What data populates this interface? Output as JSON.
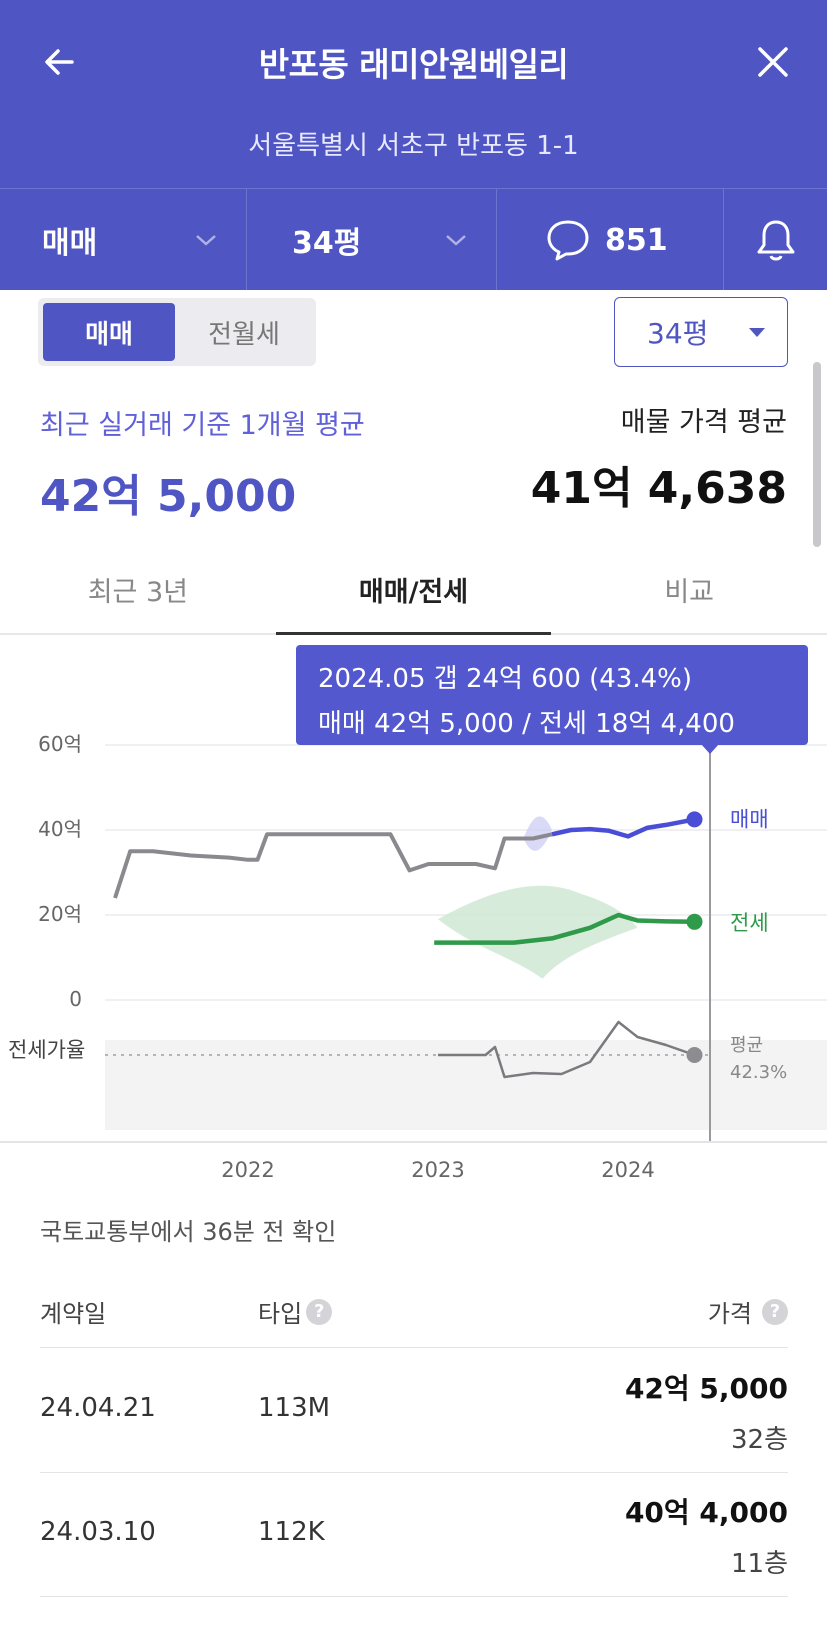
{
  "header": {
    "title": "반포동 래미안원베일리",
    "address": "서울특별시 서초구 반포동 1-1",
    "trade_type": "매매",
    "size": "34평",
    "comment_count": "851",
    "background": "#4f55c3"
  },
  "toggle": {
    "active": "매매",
    "inactive": "전월세"
  },
  "size_select": {
    "value": "34평"
  },
  "summary": {
    "recent_label": "최근 실거래 기준 1개월 평균",
    "recent_price": "42억 5,000",
    "listing_label": "매물 가격 평균",
    "listing_price": "41억 4,638"
  },
  "tabs": [
    {
      "label": "최근 3년"
    },
    {
      "label": "매매/전세"
    },
    {
      "label": "비교"
    }
  ],
  "tooltip": {
    "line1": "2024.05  갭 24억 600 (43.4%)",
    "line2": "매매 42억 5,000 / 전세 18억 4,400"
  },
  "chart_data": {
    "type": "line",
    "y_unit": "억",
    "ylim": [
      0,
      60
    ],
    "y_ticks": [
      "60억",
      "40억",
      "20억",
      "0"
    ],
    "x_ticks": [
      "2022",
      "2023",
      "2024"
    ],
    "series": [
      {
        "name": "매매",
        "color": "#4a4ed6",
        "points": [
          [
            2021.3,
            24
          ],
          [
            2021.38,
            35
          ],
          [
            2021.5,
            35
          ],
          [
            2021.7,
            34
          ],
          [
            2021.9,
            33.5
          ],
          [
            2022.0,
            33
          ],
          [
            2022.05,
            33
          ],
          [
            2022.1,
            39
          ],
          [
            2022.3,
            39
          ],
          [
            2022.6,
            39
          ],
          [
            2022.75,
            39
          ],
          [
            2022.85,
            30.5
          ],
          [
            2022.95,
            32
          ],
          [
            2023.2,
            32
          ],
          [
            2023.3,
            31
          ],
          [
            2023.35,
            38
          ],
          [
            2023.5,
            38
          ],
          [
            2023.6,
            39
          ],
          [
            2023.7,
            40
          ],
          [
            2023.8,
            40.2
          ],
          [
            2023.9,
            39.8
          ],
          [
            2024.0,
            38.5
          ],
          [
            2024.1,
            40.5
          ],
          [
            2024.2,
            41.2
          ],
          [
            2024.35,
            42.5
          ]
        ]
      },
      {
        "name": "전세",
        "color": "#2f9a4a",
        "points": [
          [
            2022.98,
            13.5
          ],
          [
            2023.2,
            13.5
          ],
          [
            2023.4,
            13.5
          ],
          [
            2023.6,
            14.5
          ],
          [
            2023.8,
            17
          ],
          [
            2023.95,
            20
          ],
          [
            2024.05,
            18.7
          ],
          [
            2024.2,
            18.5
          ],
          [
            2024.35,
            18.4
          ]
        ]
      },
      {
        "name": "전세가율",
        "color": "#777777",
        "label": "전세가율",
        "average_label": "평균",
        "average_value": "42.3%"
      }
    ],
    "series_labels": {
      "sale": "매매",
      "lease": "전세"
    }
  },
  "table": {
    "updated": "국토교통부에서 36분 전 확인",
    "headers": {
      "date": "계약일",
      "type": "타입",
      "price": "가격"
    },
    "rows": [
      {
        "date": "24.04.21",
        "type": "113M",
        "price": "42억 5,000",
        "floor": "32층"
      },
      {
        "date": "24.03.10",
        "type": "112K",
        "price": "40억 4,000",
        "floor": "11층"
      }
    ]
  }
}
